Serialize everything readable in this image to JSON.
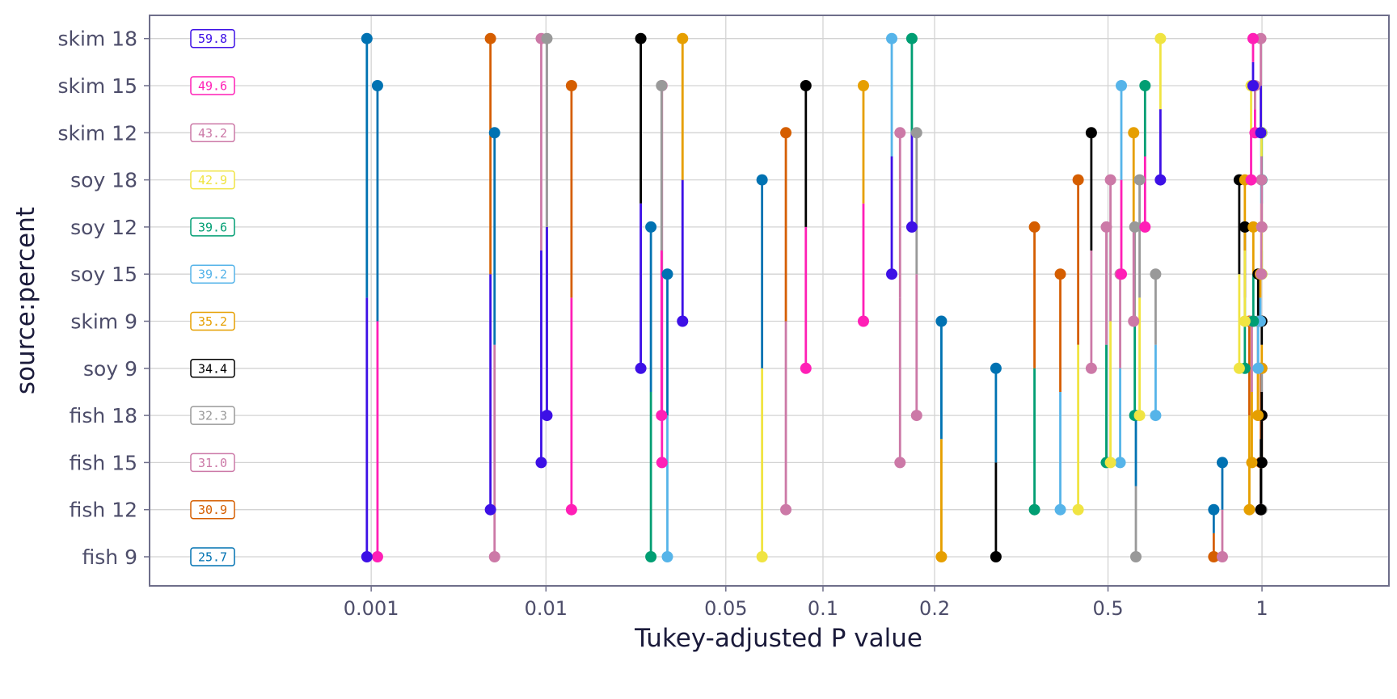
{
  "chart_data": {
    "type": "scatter",
    "xlabel": "Tukey-adjusted P value",
    "ylabel": "source:percent",
    "x_scale": "power-0.2",
    "xlim": [
      1.15e-06,
      1.66
    ],
    "x_ticks": [
      {
        "value": 0.001,
        "label": "0.001"
      },
      {
        "value": 0.01,
        "label": "0.01"
      },
      {
        "value": 0.05,
        "label": "0.05"
      },
      {
        "value": 0.1,
        "label": "0.1"
      },
      {
        "value": 0.2,
        "label": "0.2"
      },
      {
        "value": 0.5,
        "label": "0.5"
      },
      {
        "value": 1,
        "label": "1"
      }
    ],
    "grid": true,
    "levels": [
      {
        "name": "fish 9",
        "mean": "25.7",
        "color": "#0072B2"
      },
      {
        "name": "fish 12",
        "mean": "30.9",
        "color": "#D55E00"
      },
      {
        "name": "fish 15",
        "mean": "31.0",
        "color": "#CC79A7"
      },
      {
        "name": "fish 18",
        "mean": "32.3",
        "color": "#999999"
      },
      {
        "name": "soy 9",
        "mean": "34.4",
        "color": "#000000"
      },
      {
        "name": "skim 9",
        "mean": "35.2",
        "color": "#E69F00"
      },
      {
        "name": "soy 15",
        "mean": "39.2",
        "color": "#56B4E9"
      },
      {
        "name": "soy 12",
        "mean": "39.6",
        "color": "#009E73"
      },
      {
        "name": "soy 18",
        "mean": "42.9",
        "color": "#F0E442"
      },
      {
        "name": "skim 12",
        "mean": "43.2",
        "color": "#CC79A7"
      },
      {
        "name": "skim 15",
        "mean": "49.6",
        "color": "#FF1FB6"
      },
      {
        "name": "skim 18",
        "mean": "59.8",
        "color": "#3D10E6"
      }
    ],
    "comparisons": [
      [
        0,
        1,
        0.813
      ],
      [
        0,
        2,
        0.844
      ],
      [
        0,
        3,
        0.571
      ],
      [
        0,
        4,
        0.282
      ],
      [
        0,
        5,
        0.208
      ],
      [
        0,
        6,
        0.0313
      ],
      [
        0,
        7,
        0.0272
      ],
      [
        0,
        8,
        0.0655
      ],
      [
        0,
        9,
        0.00563
      ],
      [
        0,
        10,
        0.00111
      ],
      [
        0,
        11,
        0.00093
      ],
      [
        1,
        2,
        0.995
      ],
      [
        1,
        3,
        0.999
      ],
      [
        1,
        4,
        0.995
      ],
      [
        1,
        5,
        0.948
      ],
      [
        1,
        6,
        0.395
      ],
      [
        1,
        7,
        0.346
      ],
      [
        1,
        8,
        0.432
      ],
      [
        1,
        9,
        0.0776
      ],
      [
        1,
        10,
        0.013
      ],
      [
        1,
        11,
        0.00536
      ],
      [
        2,
        3,
        0.999
      ],
      [
        2,
        4,
        0.999
      ],
      [
        2,
        5,
        0.958
      ],
      [
        2,
        6,
        0.53
      ],
      [
        2,
        7,
        0.496
      ],
      [
        2,
        8,
        0.506
      ],
      [
        2,
        9,
        0.163
      ],
      [
        2,
        10,
        0.0299
      ],
      [
        2,
        11,
        0.00951
      ],
      [
        3,
        4,
        0.999
      ],
      [
        3,
        5,
        0.983
      ],
      [
        3,
        6,
        0.626
      ],
      [
        3,
        7,
        0.568
      ],
      [
        3,
        8,
        0.581
      ],
      [
        3,
        9,
        0.18
      ],
      [
        3,
        10,
        0.0298
      ],
      [
        3,
        11,
        0.0101
      ],
      [
        4,
        5,
        0.999
      ],
      [
        4,
        6,
        0.984
      ],
      [
        4,
        7,
        0.93
      ],
      [
        4,
        8,
        0.908
      ],
      [
        4,
        9,
        0.461
      ],
      [
        4,
        10,
        0.0891
      ],
      [
        4,
        11,
        0.0249
      ],
      [
        5,
        6,
        0.993
      ],
      [
        5,
        7,
        0.964
      ],
      [
        5,
        8,
        0.93
      ],
      [
        5,
        9,
        0.565
      ],
      [
        5,
        10,
        0.13
      ],
      [
        5,
        11,
        0.0355
      ],
      [
        6,
        7,
        0.999
      ],
      [
        6,
        8,
        0.999
      ],
      [
        6,
        9,
        0.997
      ],
      [
        6,
        10,
        0.533
      ],
      [
        6,
        11,
        0.155
      ],
      [
        7,
        8,
        0.999
      ],
      [
        7,
        9,
        0.999
      ],
      [
        7,
        10,
        0.596
      ],
      [
        7,
        11,
        0.175
      ],
      [
        8,
        9,
        0.998
      ],
      [
        8,
        10,
        0.955
      ],
      [
        8,
        11,
        0.64
      ],
      [
        9,
        10,
        0.971
      ],
      [
        9,
        11,
        0.995
      ],
      [
        10,
        11,
        0.963
      ]
    ]
  }
}
